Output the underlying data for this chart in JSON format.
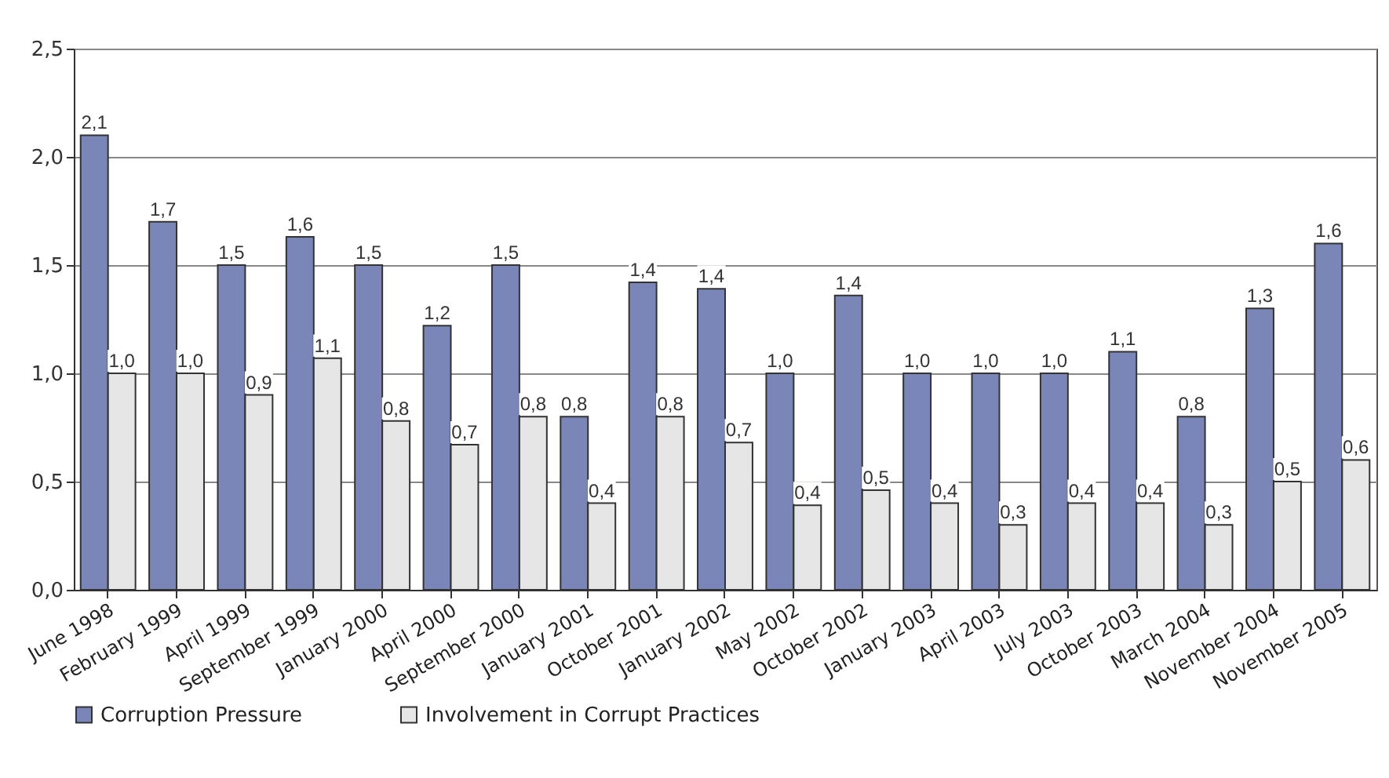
{
  "chart_data": {
    "type": "bar",
    "categories": [
      "June 1998",
      "February 1999",
      "April 1999",
      "September 1999",
      "January 2000",
      "April 2000",
      "September 2000",
      "January 2001",
      "October 2001",
      "January 2002",
      "May 2002",
      "October 2002",
      "January 2003",
      "April 2003",
      "July 2003",
      "October 2003",
      "March 2004",
      "November 2004",
      "November 2005"
    ],
    "series": [
      {
        "name": "Corruption Pressure",
        "color": "#7a86b8",
        "values": [
          2.1,
          1.7,
          1.5,
          1.63,
          1.5,
          1.22,
          1.5,
          0.8,
          1.42,
          1.39,
          1.0,
          1.36,
          1.0,
          1.0,
          1.0,
          1.1,
          0.8,
          1.3,
          1.6
        ],
        "value_labels": [
          "2,1",
          "1,7",
          "1,5",
          "1,6",
          "1,5",
          "1,2",
          "1,5",
          "0,8",
          "1,4",
          "1,4",
          "1,0",
          "1,4",
          "1,0",
          "1,0",
          "1,0",
          "1,1",
          "0,8",
          "1,3",
          "1,6"
        ]
      },
      {
        "name": "Involvement in Corrupt Practices",
        "color": "#e6e6e6",
        "values": [
          1.0,
          1.0,
          0.9,
          1.07,
          0.78,
          0.67,
          0.8,
          0.4,
          0.8,
          0.68,
          0.39,
          0.46,
          0.4,
          0.3,
          0.4,
          0.4,
          0.3,
          0.5,
          0.6
        ],
        "value_labels": [
          "1,0",
          "1,0",
          "0,9",
          "1,1",
          "0,8",
          "0,7",
          "0,8",
          "0,4",
          "0,8",
          "0,7",
          "0,4",
          "0,5",
          "0,4",
          "0,3",
          "0,4",
          "0,4",
          "0,3",
          "0,5",
          "0,6"
        ]
      }
    ],
    "ylim": [
      0,
      2.5
    ],
    "yticks": [
      {
        "value": 0,
        "label": "0,0"
      },
      {
        "value": 0.5,
        "label": "0,5"
      },
      {
        "value": 1,
        "label": "1,0"
      },
      {
        "value": 1.5,
        "label": "1,5"
      },
      {
        "value": 2,
        "label": "2,0"
      },
      {
        "value": 2.5,
        "label": "2,5"
      }
    ],
    "grid": "y",
    "legend": "bottom"
  }
}
